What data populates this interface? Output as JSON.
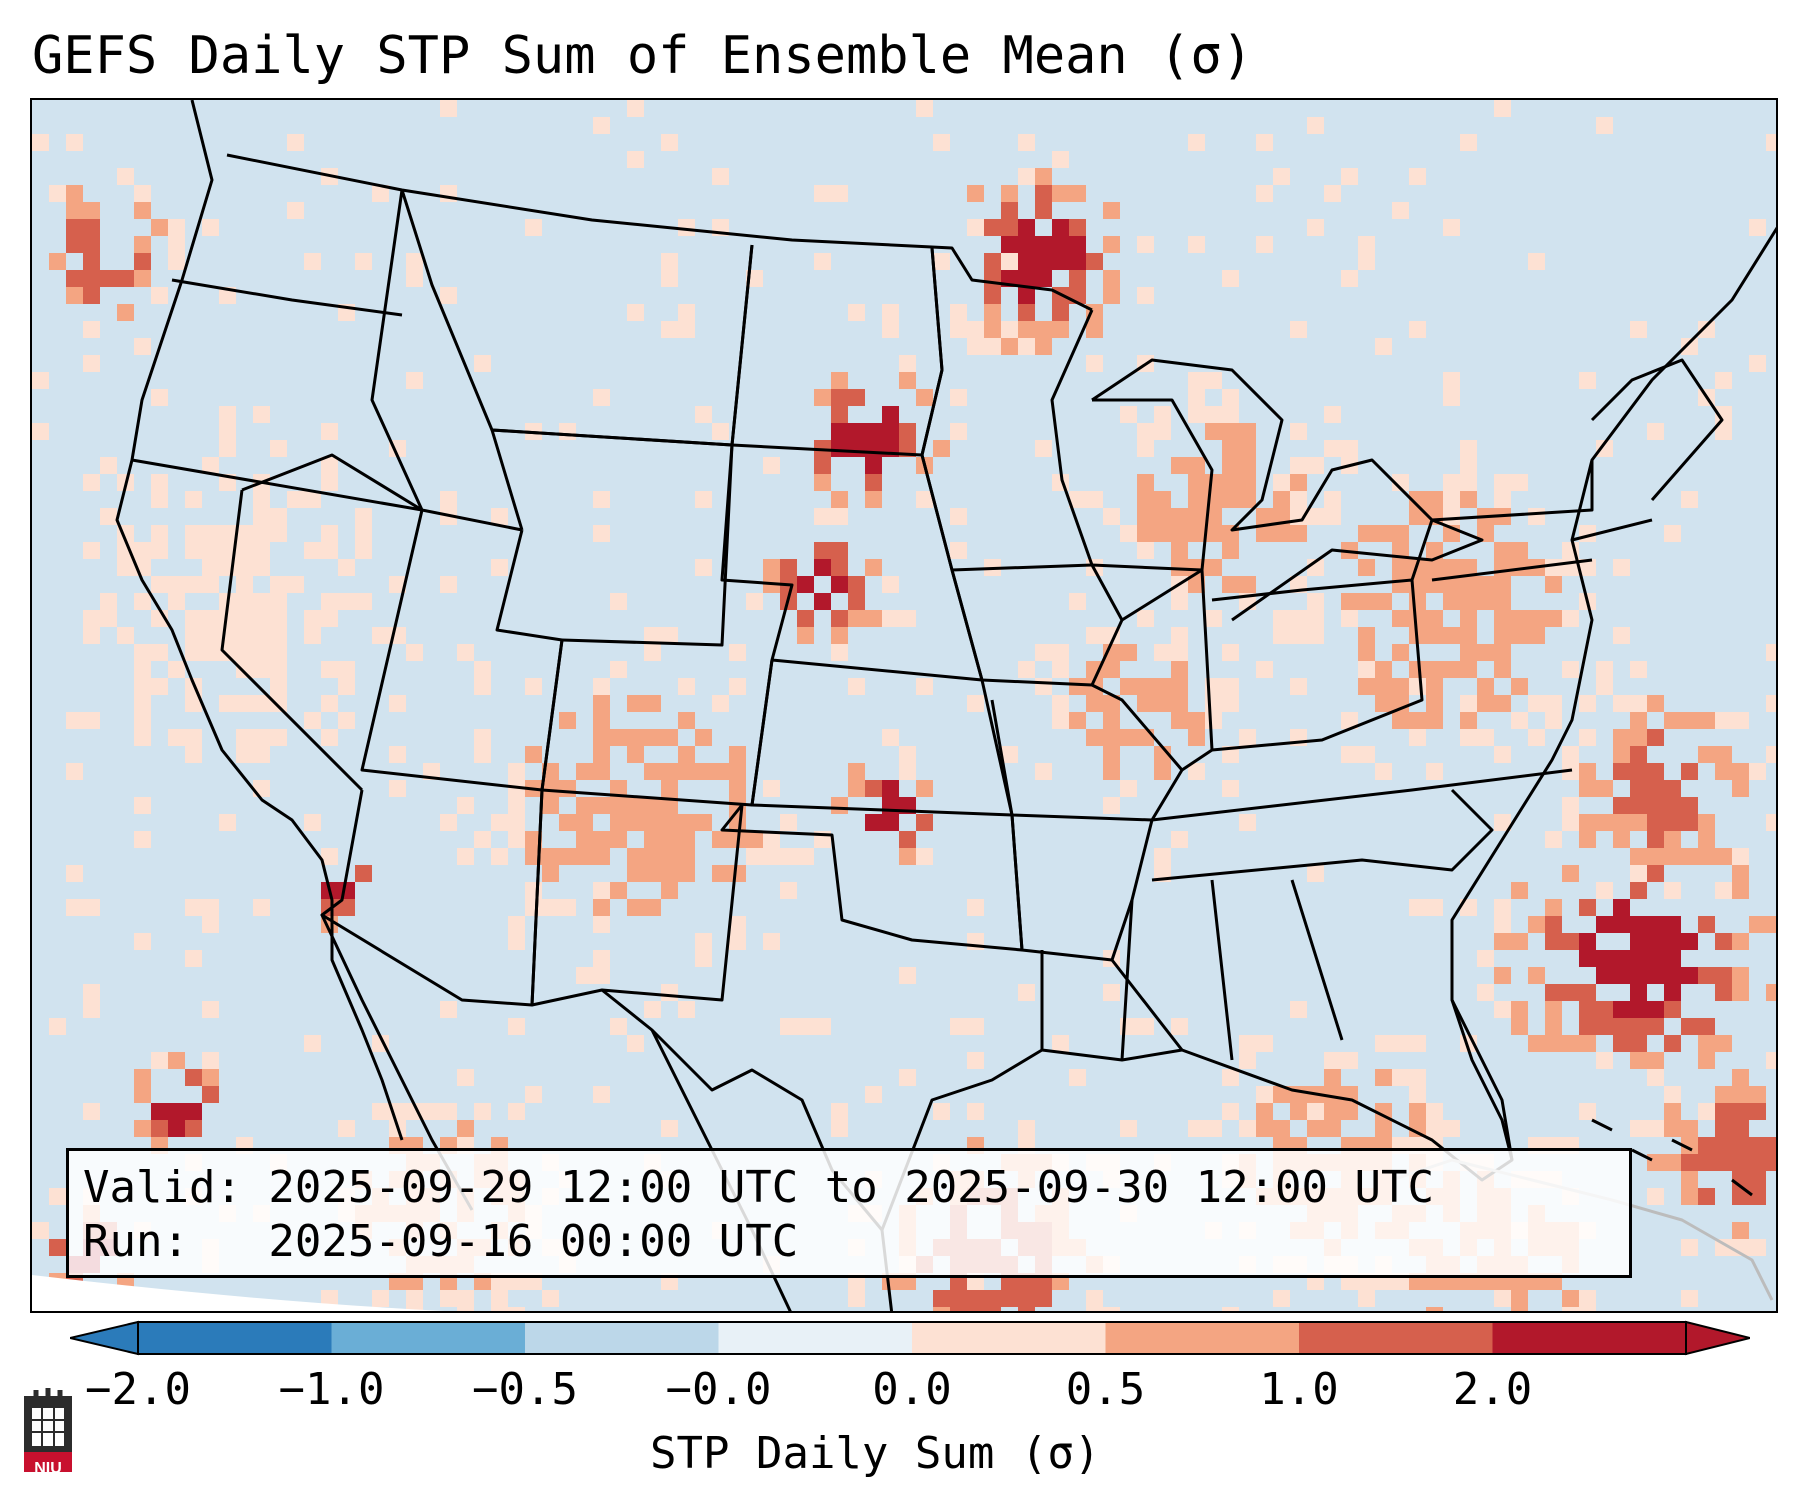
{
  "title": "GEFS Daily STP Sum of Ensemble Mean (σ)",
  "info": {
    "valid": "Valid: 2025-09-29 12:00 UTC to 2025-09-30 12:00 UTC",
    "run": "Run:   2025-09-16 00:00 UTC"
  },
  "colorbar": {
    "label": "STP Daily Sum (σ)",
    "ticks": [
      "−2.0",
      "−1.0",
      "−0.5",
      "−0.0",
      "0.0",
      "0.5",
      "1.0",
      "2.0"
    ],
    "colors": [
      "#2b7bba",
      "#6aaed6",
      "#bcd7e9",
      "#e8f1f7",
      "#fde1d3",
      "#f4a582",
      "#d6604d",
      "#b2182b"
    ],
    "extend": "both"
  },
  "map": {
    "background_color": "#d1e3ef",
    "land_outline_color": "#000000",
    "region": "Continental United States, northern Mexico and western Atlantic",
    "stp_anomaly_regions": [
      {
        "name": "Northern Plains",
        "sigma": 2.0
      },
      {
        "name": "Central Plains",
        "sigma": 1.0
      },
      {
        "name": "Upper Midwest",
        "sigma": 0.5
      },
      {
        "name": "Western Atlantic",
        "sigma": 1.0
      },
      {
        "name": "Southern California",
        "sigma": 2.0
      },
      {
        "name": "Gulf of Mexico",
        "sigma": 0.5
      }
    ]
  },
  "logo": {
    "text": "NIU"
  }
}
